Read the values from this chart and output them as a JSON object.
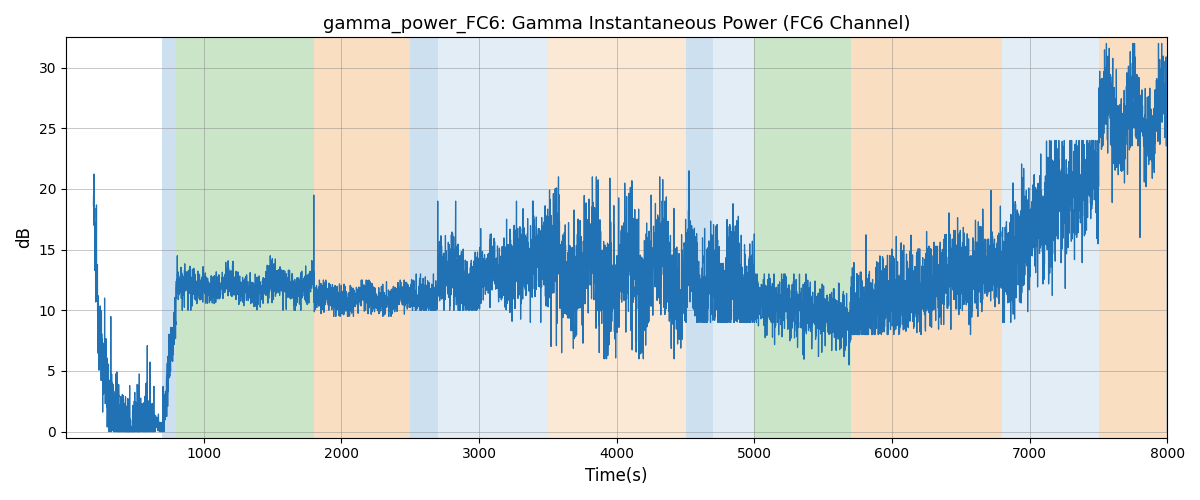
{
  "title": "gamma_power_FC6: Gamma Instantaneous Power (FC6 Channel)",
  "xlabel": "Time(s)",
  "ylabel": "dB",
  "xlim": [
    0,
    8000
  ],
  "ylim": [
    -0.5,
    32.5
  ],
  "yticks": [
    0,
    5,
    10,
    15,
    20,
    25,
    30
  ],
  "xticks": [
    1000,
    2000,
    3000,
    4000,
    5000,
    6000,
    7000,
    8000
  ],
  "line_color": "#2171b5",
  "line_width": 0.9,
  "background_bands": [
    {
      "xmin": 700,
      "xmax": 800,
      "color": "#b8d4ea",
      "alpha": 0.7
    },
    {
      "xmin": 800,
      "xmax": 1800,
      "color": "#a8d5a2",
      "alpha": 0.6
    },
    {
      "xmin": 1800,
      "xmax": 2500,
      "color": "#f5c99a",
      "alpha": 0.6
    },
    {
      "xmin": 2500,
      "xmax": 2700,
      "color": "#b8d4ea",
      "alpha": 0.7
    },
    {
      "xmin": 2700,
      "xmax": 3500,
      "color": "#b8d4ea",
      "alpha": 0.4
    },
    {
      "xmin": 3500,
      "xmax": 4500,
      "color": "#f5c99a",
      "alpha": 0.4
    },
    {
      "xmin": 4500,
      "xmax": 4700,
      "color": "#b8d4ea",
      "alpha": 0.7
    },
    {
      "xmin": 4700,
      "xmax": 5000,
      "color": "#b8d4ea",
      "alpha": 0.4
    },
    {
      "xmin": 5000,
      "xmax": 5700,
      "color": "#a8d5a2",
      "alpha": 0.6
    },
    {
      "xmin": 5700,
      "xmax": 6800,
      "color": "#f5c99a",
      "alpha": 0.6
    },
    {
      "xmin": 6800,
      "xmax": 7500,
      "color": "#b8d4ea",
      "alpha": 0.4
    },
    {
      "xmin": 7500,
      "xmax": 8000,
      "color": "#f5c99a",
      "alpha": 0.6
    }
  ],
  "title_fontsize": 13,
  "label_fontsize": 12
}
